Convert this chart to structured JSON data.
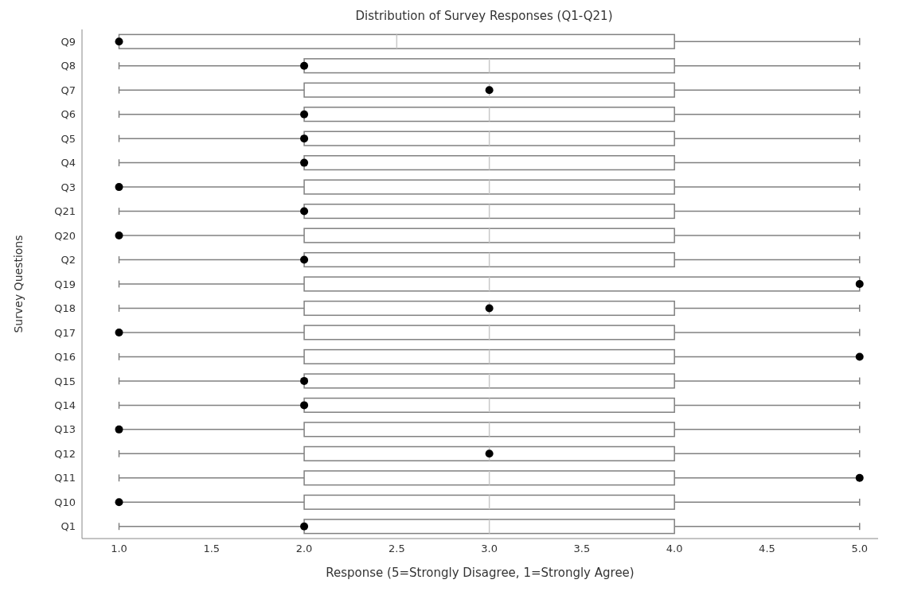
{
  "chart_data": {
    "type": "box",
    "orientation": "horizontal",
    "title": "Distribution of Survey Responses (Q1-Q21)",
    "xlabel": "Response (5=Strongly Disagree, 1=Strongly Agree)",
    "ylabel": "Survey Questions",
    "categories": [
      "Q9",
      "Q8",
      "Q7",
      "Q6",
      "Q5",
      "Q4",
      "Q3",
      "Q21",
      "Q20",
      "Q2",
      "Q19",
      "Q18",
      "Q17",
      "Q16",
      "Q15",
      "Q14",
      "Q13",
      "Q12",
      "Q11",
      "Q10",
      "Q1"
    ],
    "xlim": [
      0.8,
      5.1
    ],
    "xticks": [
      {
        "value": 1,
        "label": "1.0"
      },
      {
        "value": 1.5,
        "label": "1.5"
      },
      {
        "value": 2,
        "label": "2.0"
      },
      {
        "value": 2.5,
        "label": "2.5"
      },
      {
        "value": 3,
        "label": "3.0"
      },
      {
        "value": 3.5,
        "label": "3.5"
      },
      {
        "value": 4,
        "label": "4.0"
      },
      {
        "value": 4.5,
        "label": "4.5"
      },
      {
        "value": 5,
        "label": "5.0"
      }
    ],
    "series": [
      {
        "type": "box",
        "color": "#808080",
        "boxes": [
          {
            "low": 1,
            "q1": 1,
            "median": 2.5,
            "q3": 4,
            "high": 5
          },
          {
            "low": 1,
            "q1": 2,
            "median": 3,
            "q3": 4,
            "high": 5
          },
          {
            "low": 1,
            "q1": 2,
            "median": 3,
            "q3": 4,
            "high": 5
          },
          {
            "low": 1,
            "q1": 2,
            "median": 3,
            "q3": 4,
            "high": 5
          },
          {
            "low": 1,
            "q1": 2,
            "median": 3,
            "q3": 4,
            "high": 5
          },
          {
            "low": 1,
            "q1": 2,
            "median": 3,
            "q3": 4,
            "high": 5
          },
          {
            "low": 1,
            "q1": 2,
            "median": 3,
            "q3": 4,
            "high": 5
          },
          {
            "low": 1,
            "q1": 2,
            "median": 3,
            "q3": 4,
            "high": 5
          },
          {
            "low": 1,
            "q1": 2,
            "median": 3,
            "q3": 4,
            "high": 5
          },
          {
            "low": 1,
            "q1": 2,
            "median": 3,
            "q3": 4,
            "high": 5
          },
          {
            "low": 1,
            "q1": 2,
            "median": 3,
            "q3": 5,
            "high": 5
          },
          {
            "low": 1,
            "q1": 2,
            "median": 3,
            "q3": 4,
            "high": 5
          },
          {
            "low": 1,
            "q1": 2,
            "median": 3,
            "q3": 4,
            "high": 5
          },
          {
            "low": 1,
            "q1": 2,
            "median": 3,
            "q3": 4,
            "high": 5
          },
          {
            "low": 1,
            "q1": 2,
            "median": 3,
            "q3": 4,
            "high": 5
          },
          {
            "low": 1,
            "q1": 2,
            "median": 3,
            "q3": 4,
            "high": 5
          },
          {
            "low": 1,
            "q1": 2,
            "median": 3,
            "q3": 4,
            "high": 5
          },
          {
            "low": 1,
            "q1": 2,
            "median": 3,
            "q3": 4,
            "high": 5
          },
          {
            "low": 1,
            "q1": 2,
            "median": 3,
            "q3": 4,
            "high": 5
          },
          {
            "low": 1,
            "q1": 2,
            "median": 3,
            "q3": 4,
            "high": 5
          },
          {
            "low": 1,
            "q1": 2,
            "median": 3,
            "q3": 4,
            "high": 5
          }
        ]
      },
      {
        "type": "scatter",
        "color": "#000000",
        "marker": "circle",
        "x": [
          "Q9",
          "Q8",
          "Q7",
          "Q6",
          "Q5",
          "Q4",
          "Q3",
          "Q21",
          "Q20",
          "Q2",
          "Q19",
          "Q18",
          "Q17",
          "Q16",
          "Q15",
          "Q14",
          "Q13",
          "Q12",
          "Q11",
          "Q10",
          "Q1"
        ],
        "values": [
          1,
          2,
          3,
          2,
          2,
          2,
          1,
          2,
          1,
          2,
          5,
          3,
          1,
          5,
          2,
          2,
          1,
          3,
          5,
          1,
          2
        ]
      }
    ]
  }
}
